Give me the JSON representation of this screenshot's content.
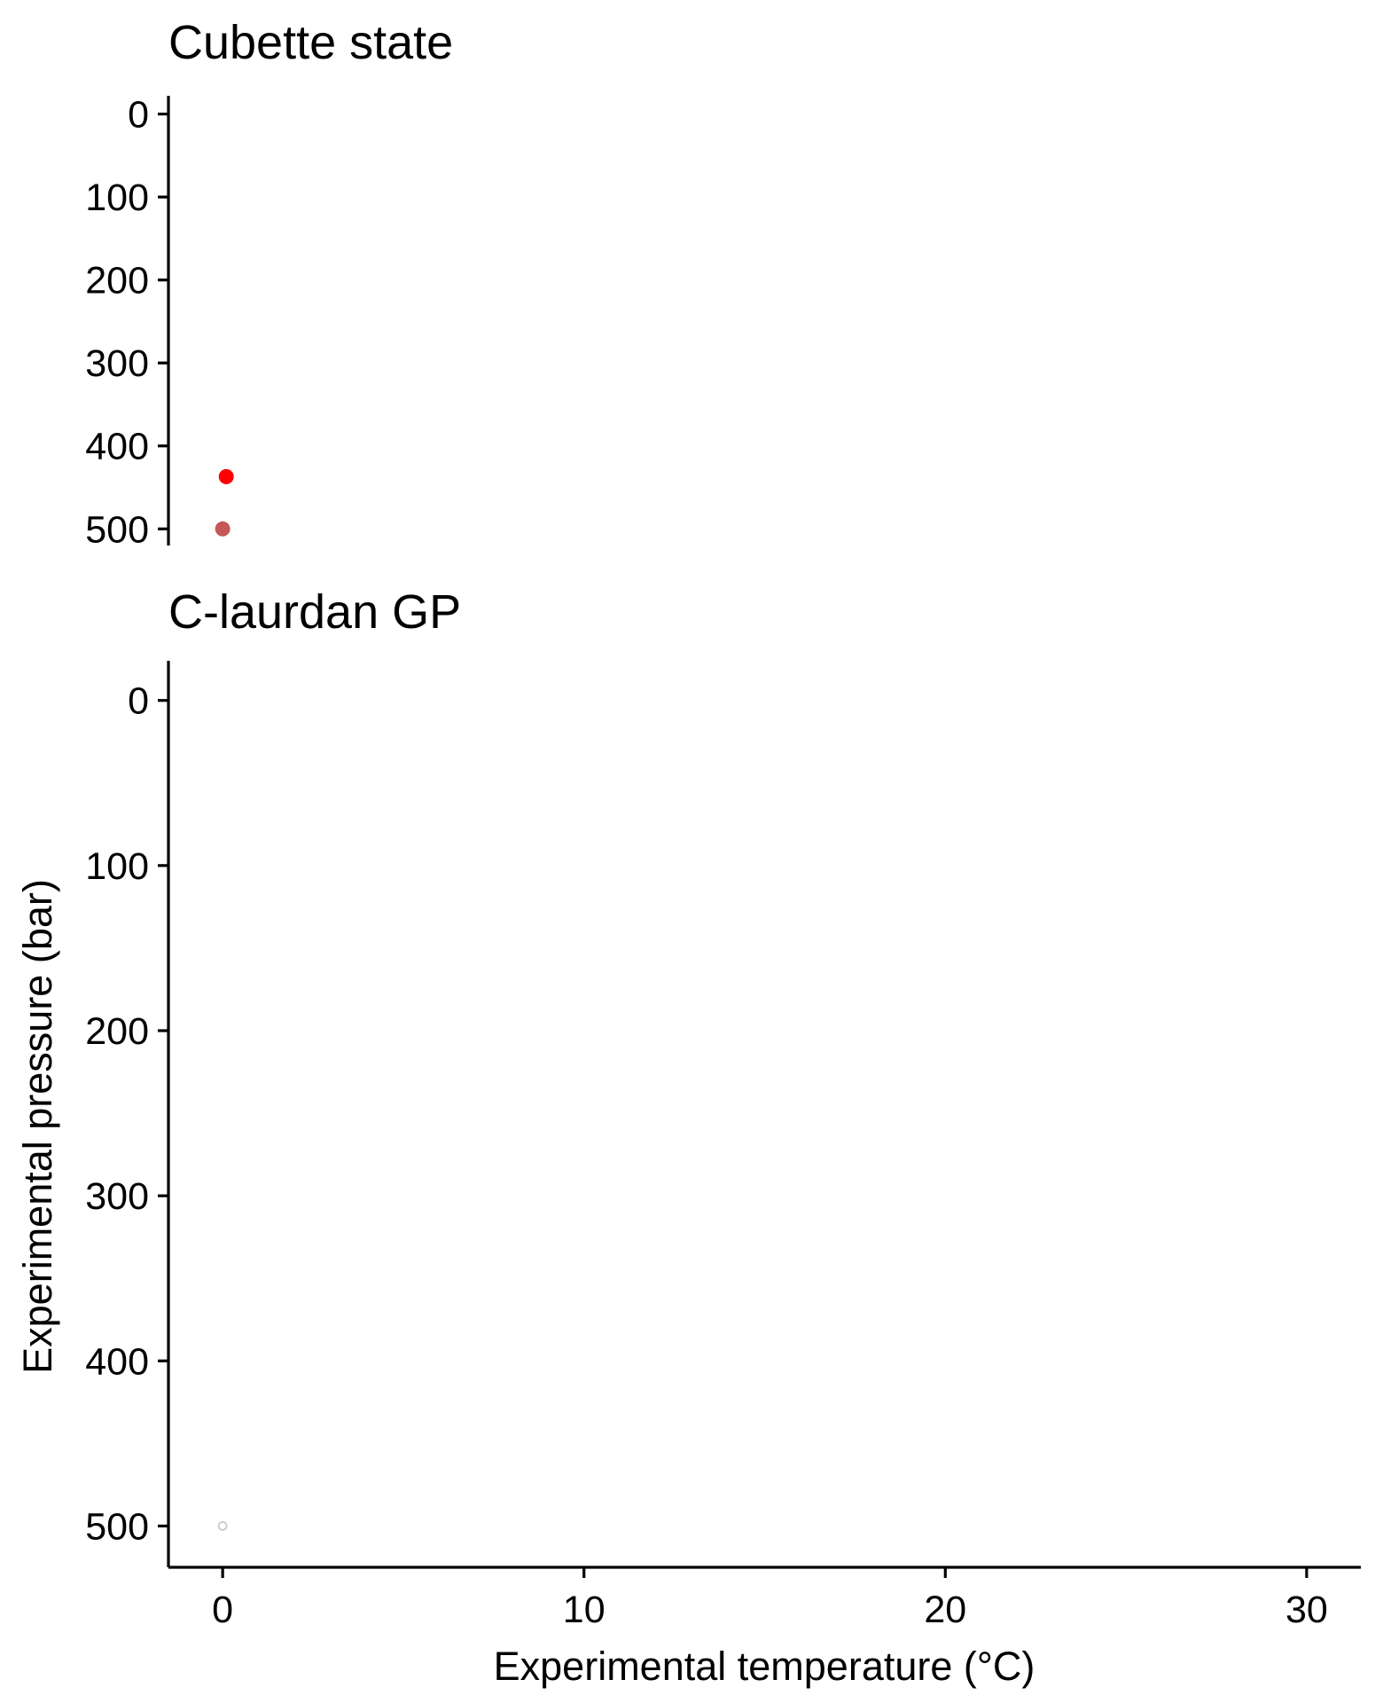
{
  "chart_data": [
    {
      "type": "scatter",
      "title": "Cubette state",
      "xlabel": "",
      "ylabel": "",
      "x_axis_shown": false,
      "y_reversed": true,
      "xlim": [
        -1.5,
        31.5
      ],
      "ylim": [
        -22,
        520
      ],
      "yticks": [
        0,
        100,
        200,
        300,
        400,
        500
      ],
      "ytick_labels": [
        "0",
        "100",
        "200",
        "300",
        "400",
        "500"
      ],
      "grid": false,
      "points": [
        {
          "x": 0.1,
          "y": 437,
          "color": "#ff0000",
          "opacity": 1.0
        },
        {
          "x": 0.0,
          "y": 500,
          "color": "#b22222",
          "opacity": 0.75
        }
      ]
    },
    {
      "type": "scatter",
      "title": "C-laurdan GP",
      "xlabel": "Experimental temperature (°C)",
      "ylabel": "Experimental pressure (bar)",
      "y_reversed": true,
      "xlim": [
        -1.5,
        31.5
      ],
      "ylim": [
        -24,
        525
      ],
      "xticks": [
        0,
        10,
        20,
        30
      ],
      "xtick_labels": [
        "0",
        "10",
        "20",
        "30"
      ],
      "yticks": [
        0,
        100,
        200,
        300,
        400,
        500
      ],
      "ytick_labels": [
        "0",
        "100",
        "200",
        "300",
        "400",
        "500"
      ],
      "grid": false,
      "points": [
        {
          "x": 0.0,
          "y": 500,
          "color": "#c8c8c8",
          "opacity": 1.0,
          "hollow": true
        }
      ]
    }
  ]
}
